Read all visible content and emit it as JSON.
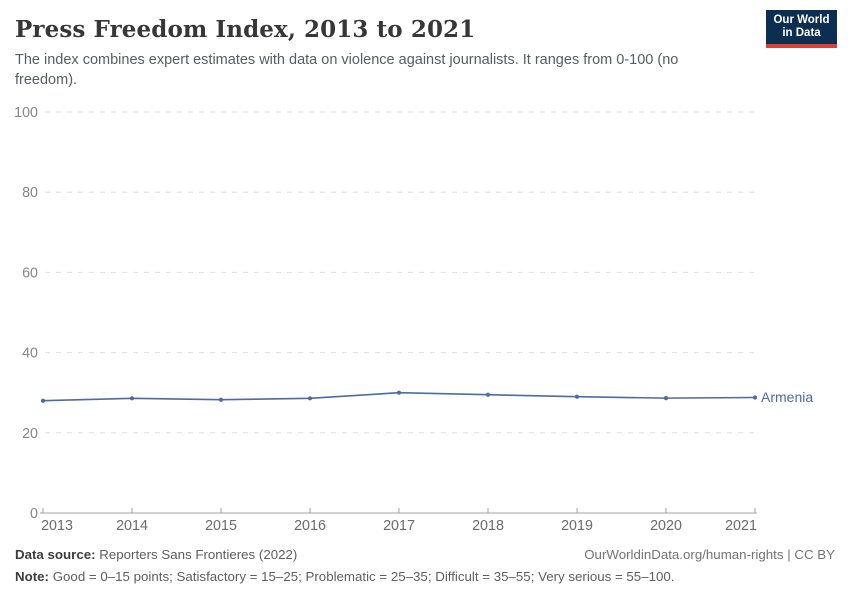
{
  "header": {
    "title": "Press Freedom Index, 2013 to 2021",
    "subtitle": "The index combines expert estimates with data on violence against journalists. It ranges from 0-100 (no freedom).",
    "logo": {
      "line1": "Our World",
      "line2": "in Data",
      "bg_color": "#0c2e51",
      "accent_color": "#dc3f34"
    }
  },
  "chart_data": {
    "type": "line",
    "title": "Press Freedom Index, 2013 to 2021",
    "x": [
      2013,
      2014,
      2015,
      2016,
      2017,
      2018,
      2019,
      2020,
      2021
    ],
    "series": [
      {
        "name": "Armenia",
        "color": "#4d6ba3",
        "values": [
          28.0,
          28.6,
          28.25,
          28.6,
          30.0,
          29.5,
          29.0,
          28.65,
          28.8
        ]
      }
    ],
    "xlabel": "",
    "ylabel": "",
    "ylim": [
      0,
      100
    ],
    "yticks": [
      0,
      20,
      40,
      60,
      80,
      100
    ],
    "grid": "horizontal-dashed",
    "legend_position": "end-of-line",
    "axis_color": "#a3a3a3",
    "gridline_color": "#dedede",
    "ytick_label_color": "#878787",
    "xtick_label_color": "#6b6b6b"
  },
  "footer": {
    "datasource_label": "Data source:",
    "datasource_value": "Reporters Sans Frontieres (2022)",
    "link": "OurWorldinData.org/human-rights | CC BY",
    "note_label": "Note:",
    "note_value": "Good = 0–15 points; Satisfactory = 15–25; Problematic = 25–35; Difficult = 35–55; Very serious = 55–100."
  }
}
